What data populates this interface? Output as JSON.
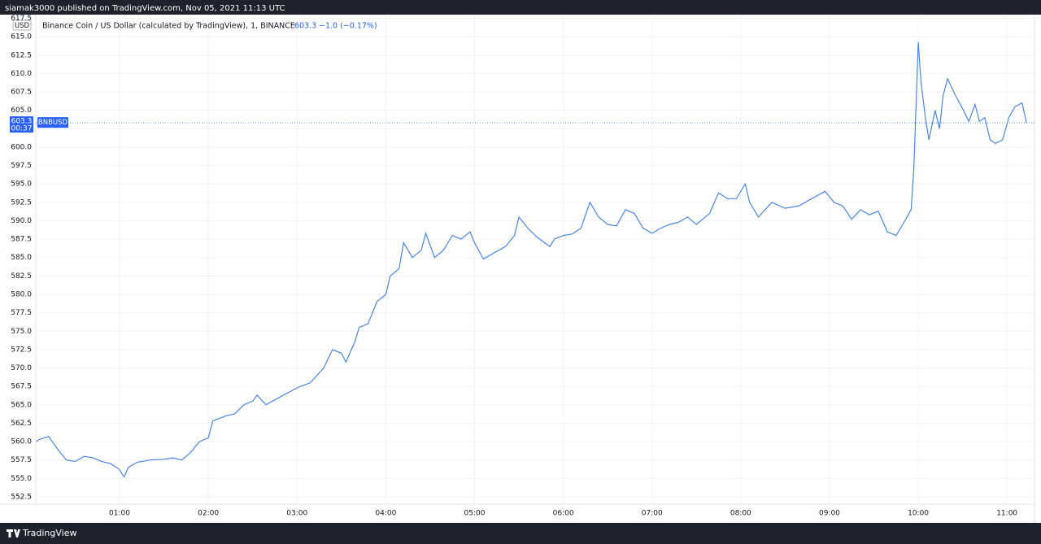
{
  "header": {
    "text": "siamak3000 published on TradingView.com, Nov 05, 2021 11:13 UTC"
  },
  "footer": {
    "text": "TradingView"
  },
  "chart_data": {
    "type": "line",
    "title": "Binance Coin / US Dollar (calculated by TradingView), 1, BINANCE",
    "change": "−1.0 (−0.17%)",
    "countdown": "00:37",
    "symbol": "BNBUSD",
    "currency": "USD",
    "last_value": 603.3,
    "color": "#4a86e8",
    "grid": true,
    "x": [
      0.06,
      0.1,
      0.2,
      0.3,
      0.4,
      0.5,
      0.6,
      0.7,
      0.8,
      0.9,
      1.0,
      1.05,
      1.1,
      1.2,
      1.35,
      1.5,
      1.6,
      1.7,
      1.8,
      1.9,
      2.0,
      2.05,
      2.2,
      2.3,
      2.4,
      2.5,
      2.55,
      2.65,
      2.8,
      3.0,
      3.15,
      3.3,
      3.4,
      3.5,
      3.55,
      3.65,
      3.7,
      3.8,
      3.9,
      4.0,
      4.05,
      4.15,
      4.2,
      4.3,
      4.4,
      4.45,
      4.55,
      4.65,
      4.75,
      4.85,
      4.95,
      5.0,
      5.1,
      5.2,
      5.35,
      5.45,
      5.5,
      5.6,
      5.7,
      5.85,
      5.9,
      6.0,
      6.1,
      6.2,
      6.3,
      6.4,
      6.5,
      6.6,
      6.7,
      6.8,
      6.9,
      7.0,
      7.1,
      7.2,
      7.3,
      7.4,
      7.5,
      7.65,
      7.75,
      7.85,
      7.95,
      8.05,
      8.1,
      8.2,
      8.35,
      8.5,
      8.65,
      8.8,
      8.95,
      9.05,
      9.15,
      9.25,
      9.35,
      9.45,
      9.55,
      9.65,
      9.75,
      9.85,
      9.92,
      9.95,
      10.0,
      10.03,
      10.08,
      10.12,
      10.19,
      10.24,
      10.28,
      10.33,
      10.42,
      10.51,
      10.57,
      10.64,
      10.69,
      10.75,
      10.81,
      10.87,
      10.95,
      11.02,
      11.09,
      11.17,
      11.22
    ],
    "values": [
      560.0,
      560.3,
      560.7,
      559.0,
      557.5,
      557.3,
      558.0,
      557.8,
      557.3,
      557.0,
      556.2,
      555.2,
      556.5,
      557.2,
      557.5,
      557.6,
      557.8,
      557.5,
      558.5,
      560.0,
      560.5,
      562.8,
      563.5,
      563.8,
      565.0,
      565.5,
      566.3,
      565.0,
      566.0,
      567.3,
      568.0,
      570.0,
      572.5,
      572.0,
      570.8,
      573.5,
      575.5,
      576.0,
      579.0,
      580.0,
      582.5,
      583.5,
      587.0,
      585.0,
      586.0,
      588.3,
      585.0,
      586.0,
      588.0,
      587.5,
      588.5,
      587.0,
      584.8,
      585.5,
      586.5,
      588.0,
      590.5,
      589.0,
      587.8,
      586.5,
      587.5,
      588.0,
      588.2,
      589.0,
      592.5,
      590.5,
      589.5,
      589.3,
      591.5,
      591.0,
      589.0,
      588.3,
      589.0,
      589.5,
      589.8,
      590.5,
      589.5,
      591.0,
      593.8,
      593.0,
      593.0,
      595.0,
      592.5,
      590.5,
      592.5,
      591.7,
      592.0,
      593.0,
      594.0,
      592.5,
      592.0,
      590.2,
      591.5,
      590.8,
      591.3,
      588.5,
      588.0,
      590.0,
      591.5,
      597.0,
      614.3,
      609.0,
      604.0,
      601.0,
      605.0,
      602.5,
      607.0,
      609.3,
      607.0,
      605.0,
      603.5,
      605.8,
      603.5,
      604.0,
      601.0,
      600.5,
      601.0,
      604.0,
      605.5,
      606.0,
      603.3
    ],
    "xlim": [
      0.056,
      11.31
    ],
    "xticks": [
      {
        "value": 1,
        "label": "01:00"
      },
      {
        "value": 2,
        "label": "02:00"
      },
      {
        "value": 3,
        "label": "03:00"
      },
      {
        "value": 4,
        "label": "04:00"
      },
      {
        "value": 5,
        "label": "05:00"
      },
      {
        "value": 6,
        "label": "06:00"
      },
      {
        "value": 7,
        "label": "07:00"
      },
      {
        "value": 8,
        "label": "08:00"
      },
      {
        "value": 9,
        "label": "09:00"
      },
      {
        "value": 10,
        "label": "10:00"
      },
      {
        "value": 11,
        "label": "11:00"
      }
    ],
    "ylim": [
      551.5,
      618
    ],
    "yticks": [
      552.5,
      {
        "value": 555,
        "label": "555.0"
      },
      557.5,
      {
        "value": 560,
        "label": "560.0"
      },
      562.5,
      {
        "value": 565,
        "label": "565.0"
      },
      567.5,
      {
        "value": 570,
        "label": "570.0"
      },
      572.5,
      {
        "value": 575,
        "label": "575.0"
      },
      577.5,
      {
        "value": 580,
        "label": "580.0"
      },
      582.5,
      {
        "value": 585,
        "label": "585.0"
      },
      587.5,
      {
        "value": 590,
        "label": "590.0"
      },
      592.5,
      {
        "value": 595,
        "label": "595.0"
      },
      597.5,
      {
        "value": 600,
        "label": "600.0"
      },
      602.5,
      {
        "value": 605,
        "label": "605.0"
      },
      607.5,
      {
        "value": 610,
        "label": "610.0"
      },
      612.5,
      {
        "value": 615,
        "label": "615.0"
      },
      617.5
    ]
  }
}
